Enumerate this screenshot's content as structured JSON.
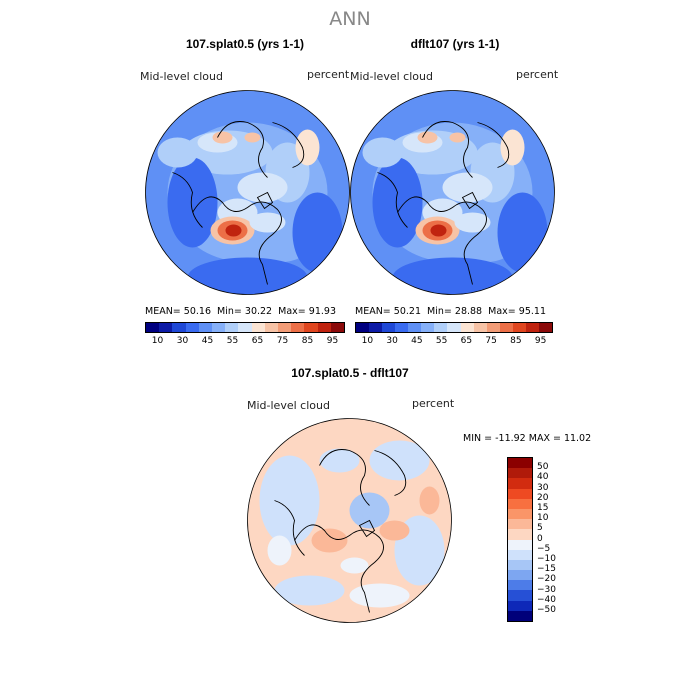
{
  "chart_data": {
    "type": "heatmap",
    "title": "ANN",
    "field": "Mid-level cloud",
    "units": "percent",
    "panels": [
      {
        "id": "p1",
        "title": "107.splat0.5 (yrs 1-1)",
        "variable": "Mid-level cloud",
        "units": "percent",
        "mean_label": "MEAN=",
        "mean": "50.16",
        "min_label": "Min=",
        "min": "30.22",
        "max_label": "Max=",
        "max": "91.93",
        "colors": [
          "#000080",
          "#0d1ba6",
          "#1f48d6",
          "#3a6bf0",
          "#5f90f5",
          "#86b0f8",
          "#b0cff9",
          "#d6e6fa",
          "#fbe4d3",
          "#f7c3a6",
          "#f29c77",
          "#ec6f47",
          "#e0461f",
          "#c0230f",
          "#8b0a0a"
        ],
        "tick_labels": [
          "10",
          "30",
          "45",
          "55",
          "65",
          "75",
          "85",
          "95"
        ]
      },
      {
        "id": "p2",
        "title": "dflt107 (yrs 1-1)",
        "variable": "Mid-level cloud",
        "units": "percent",
        "mean_label": "MEAN=",
        "mean": "50.21",
        "min_label": "Min=",
        "min": "28.88",
        "max_label": "Max=",
        "max": "95.11",
        "colors": [
          "#000080",
          "#0d1ba6",
          "#1f48d6",
          "#3a6bf0",
          "#5f90f5",
          "#86b0f8",
          "#b0cff9",
          "#d6e6fa",
          "#fbe4d3",
          "#f7c3a6",
          "#f29c77",
          "#ec6f47",
          "#e0461f",
          "#c0230f",
          "#8b0a0a"
        ],
        "tick_labels": [
          "10",
          "30",
          "45",
          "55",
          "65",
          "75",
          "85",
          "95"
        ]
      }
    ],
    "difference": {
      "title": "107.splat0.5 - dflt107",
      "variable": "Mid-level cloud",
      "units": "percent",
      "minmax_label": "MIN = -11.92 MAX =  11.02",
      "min": -11.92,
      "max": 11.02,
      "levels": [
        "50",
        "40",
        "30",
        "20",
        "15",
        "10",
        "5",
        "0",
        "−5",
        "−10",
        "−15",
        "−20",
        "−30",
        "−40",
        "−50"
      ],
      "colors": [
        "#8b0000",
        "#b01a0a",
        "#d22c10",
        "#ee4a22",
        "#f87040",
        "#fa9568",
        "#fbb898",
        "#fdd7c2",
        "#eef3fb",
        "#cfe1fb",
        "#a7c6f6",
        "#7da6f1",
        "#4d7ce8",
        "#2650d6",
        "#0e28b8",
        "#00007a"
      ]
    }
  }
}
